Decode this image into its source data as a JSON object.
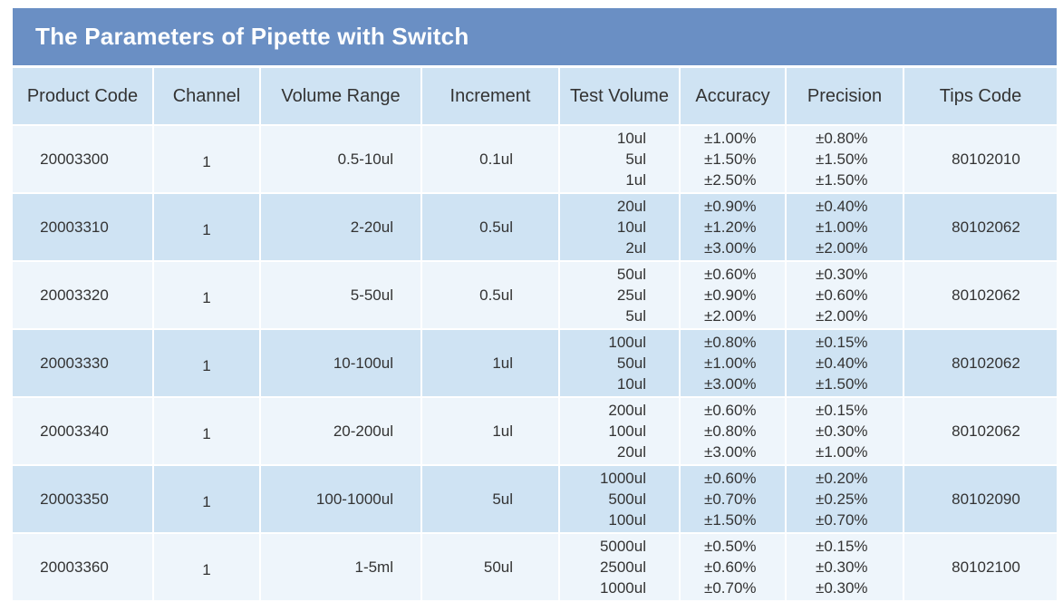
{
  "title": "The Parameters of Pipette with Switch",
  "columns": [
    "Product Code",
    "Channel",
    "Volume Range",
    "Increment",
    "Test Volume",
    "Accuracy",
    "Precision",
    "Tips Code"
  ],
  "rows": [
    {
      "product_code": "20003300",
      "channel": "1",
      "volume_range": "0.5-10ul",
      "increment": "0.1ul",
      "test_volume": [
        "10ul",
        "5ul",
        "1ul"
      ],
      "accuracy": [
        "±1.00%",
        "±1.50%",
        "±2.50%"
      ],
      "precision": [
        "±0.80%",
        "±1.50%",
        "±1.50%"
      ],
      "tips_code": "80102010"
    },
    {
      "product_code": "20003310",
      "channel": "1",
      "volume_range": "2-20ul",
      "increment": "0.5ul",
      "test_volume": [
        "20ul",
        "10ul",
        "2ul"
      ],
      "accuracy": [
        "±0.90%",
        "±1.20%",
        "±3.00%"
      ],
      "precision": [
        "±0.40%",
        "±1.00%",
        "±2.00%"
      ],
      "tips_code": "80102062"
    },
    {
      "product_code": "20003320",
      "channel": "1",
      "volume_range": "5-50ul",
      "increment": "0.5ul",
      "test_volume": [
        "50ul",
        "25ul",
        "5ul"
      ],
      "accuracy": [
        "±0.60%",
        "±0.90%",
        "±2.00%"
      ],
      "precision": [
        "±0.30%",
        "±0.60%",
        "±2.00%"
      ],
      "tips_code": "80102062"
    },
    {
      "product_code": "20003330",
      "channel": "1",
      "volume_range": "10-100ul",
      "increment": "1ul",
      "test_volume": [
        "100ul",
        "50ul",
        "10ul"
      ],
      "accuracy": [
        "±0.80%",
        "±1.00%",
        "±3.00%"
      ],
      "precision": [
        "±0.15%",
        "±0.40%",
        "±1.50%"
      ],
      "tips_code": "80102062"
    },
    {
      "product_code": "20003340",
      "channel": "1",
      "volume_range": "20-200ul",
      "increment": "1ul",
      "test_volume": [
        "200ul",
        "100ul",
        "20ul"
      ],
      "accuracy": [
        "±0.60%",
        "±0.80%",
        "±3.00%"
      ],
      "precision": [
        "±0.15%",
        "±0.30%",
        "±1.00%"
      ],
      "tips_code": "80102062"
    },
    {
      "product_code": "20003350",
      "channel": "1",
      "volume_range": "100-1000ul",
      "increment": "5ul",
      "test_volume": [
        "1000ul",
        "500ul",
        "100ul"
      ],
      "accuracy": [
        "±0.60%",
        "±0.70%",
        "±1.50%"
      ],
      "precision": [
        "±0.20%",
        "±0.25%",
        "±0.70%"
      ],
      "tips_code": "80102090"
    },
    {
      "product_code": "20003360",
      "channel": "1",
      "volume_range": "1-5ml",
      "increment": "50ul",
      "test_volume": [
        "5000ul",
        "2500ul",
        "1000ul"
      ],
      "accuracy": [
        "±0.50%",
        "±0.60%",
        "±0.70%"
      ],
      "precision": [
        "±0.15%",
        "±0.30%",
        "±0.30%"
      ],
      "tips_code": "80102100"
    }
  ]
}
